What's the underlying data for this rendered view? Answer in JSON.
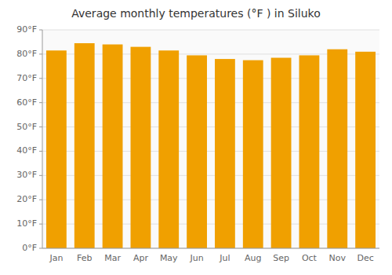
{
  "chart_data": {
    "type": "bar",
    "title": "Average monthly temperatures (°F ) in Siluko",
    "categories": [
      "Jan",
      "Feb",
      "Mar",
      "Apr",
      "May",
      "Jun",
      "Jul",
      "Aug",
      "Sep",
      "Oct",
      "Nov",
      "Dec"
    ],
    "values": [
      81.5,
      84.5,
      84.0,
      83.0,
      81.5,
      79.5,
      78.0,
      77.5,
      78.5,
      79.5,
      82.0,
      81.0
    ],
    "color": "#F0A000",
    "ylim": [
      0,
      90
    ],
    "yticks": [
      {
        "value": 0,
        "label": "0°F"
      },
      {
        "value": 10,
        "label": "10°F"
      },
      {
        "value": 20,
        "label": "20°F"
      },
      {
        "value": 30,
        "label": "30°F"
      },
      {
        "value": 40,
        "label": "40°F"
      },
      {
        "value": 50,
        "label": "50°F"
      },
      {
        "value": 60,
        "label": "60°F"
      },
      {
        "value": 70,
        "label": "70°F"
      },
      {
        "value": 80,
        "label": "80°F"
      },
      {
        "value": 90,
        "label": "90°F"
      }
    ],
    "grid": true
  }
}
